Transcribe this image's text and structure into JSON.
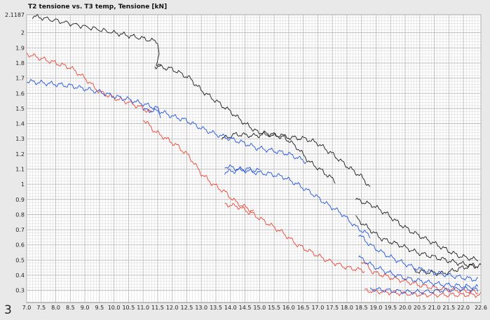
{
  "figure_number": "3",
  "colors": {
    "series_black": "#1a1a1a",
    "series_red": "#ee4433",
    "series_blue": "#2255dd",
    "grid_minor": "#d6d6d6",
    "grid_major": "#b5b5b5",
    "plot_bg": "#ffffff"
  },
  "chart_data": {
    "type": "line",
    "title": "T2 tensione vs. T3 temp, Tensione [kN]",
    "xlabel": "",
    "ylabel": "",
    "xlim": [
      7.0,
      22.6
    ],
    "ylim": [
      0.22,
      2.1187
    ],
    "grid": true,
    "x_ticks": [
      "7.0",
      "7.5",
      "8.0",
      "8.5",
      "9.0",
      "9.5",
      "10.0",
      "10.5",
      "11.0",
      "11.5",
      "12.0",
      "12.5",
      "13.0",
      "13.5",
      "14.0",
      "14.5",
      "15.0",
      "15.5",
      "16.0",
      "16.5",
      "17.0",
      "17.5",
      "18.0",
      "18.5",
      "19.0",
      "19.5",
      "20.0",
      "20.5",
      "21.0",
      "21.5",
      "22.0",
      "22.6"
    ],
    "y_ticks": [
      "0.3",
      "0.4",
      "0.5",
      "0.6",
      "0.7",
      "0.8",
      "0.9",
      "1",
      "1.1",
      "1.2",
      "1.3",
      "1.4",
      "1.5",
      "1.6",
      "1.7",
      "1.8",
      "1.9",
      "2",
      "2.1187"
    ],
    "series": [
      {
        "color": "#1a1a1a",
        "segments": [
          [
            [
              7.2,
              2.11
            ],
            [
              8.0,
              2.08
            ],
            [
              9.0,
              2.04
            ],
            [
              10.0,
              2.0
            ],
            [
              10.8,
              1.97
            ],
            [
              11.5,
              1.94
            ],
            [
              11.55,
              1.86
            ],
            [
              11.45,
              1.8
            ],
            [
              11.6,
              1.79
            ]
          ],
          [
            [
              11.4,
              1.78
            ],
            [
              12.0,
              1.76
            ],
            [
              12.6,
              1.7
            ],
            [
              13.0,
              1.62
            ],
            [
              13.5,
              1.55
            ],
            [
              14.0,
              1.48
            ],
            [
              14.5,
              1.4
            ],
            [
              14.9,
              1.35
            ]
          ],
          [
            [
              14.9,
              1.35
            ],
            [
              15.5,
              1.32
            ],
            [
              16.0,
              1.31
            ],
            [
              16.6,
              1.3
            ],
            [
              17.0,
              1.27
            ],
            [
              17.5,
              1.2
            ],
            [
              18.0,
              1.12
            ],
            [
              18.5,
              1.05
            ],
            [
              18.8,
              0.98
            ]
          ],
          [
            [
              13.7,
              1.3
            ],
            [
              14.2,
              1.33
            ],
            [
              14.8,
              1.32
            ],
            [
              15.3,
              1.33
            ],
            [
              15.8,
              1.32
            ],
            [
              16.3,
              1.24
            ],
            [
              16.7,
              1.15
            ],
            [
              17.2,
              1.08
            ],
            [
              17.6,
              1.02
            ]
          ],
          [
            [
              18.3,
              0.9
            ],
            [
              18.9,
              0.86
            ],
            [
              19.4,
              0.8
            ],
            [
              19.8,
              0.74
            ],
            [
              20.2,
              0.69
            ],
            [
              20.8,
              0.63
            ],
            [
              21.3,
              0.58
            ],
            [
              21.8,
              0.53
            ],
            [
              22.5,
              0.5
            ]
          ],
          [
            [
              18.3,
              0.78
            ],
            [
              18.8,
              0.7
            ],
            [
              19.2,
              0.64
            ],
            [
              19.8,
              0.6
            ],
            [
              20.4,
              0.55
            ],
            [
              21.0,
              0.52
            ],
            [
              21.6,
              0.49
            ],
            [
              22.1,
              0.47
            ],
            [
              22.5,
              0.46
            ]
          ],
          [
            [
              20.3,
              0.43
            ],
            [
              20.8,
              0.42
            ],
            [
              21.3,
              0.41
            ],
            [
              21.8,
              0.44
            ],
            [
              22.2,
              0.46
            ],
            [
              22.6,
              0.46
            ]
          ]
        ]
      },
      {
        "color": "#ee4433",
        "segments": [
          [
            [
              7.0,
              1.86
            ],
            [
              7.5,
              1.83
            ],
            [
              8.0,
              1.8
            ],
            [
              8.5,
              1.77
            ],
            [
              9.0,
              1.7
            ],
            [
              9.5,
              1.61
            ],
            [
              10.0,
              1.57
            ],
            [
              10.5,
              1.54
            ],
            [
              11.0,
              1.5
            ],
            [
              11.3,
              1.47
            ]
          ],
          [
            [
              11.0,
              1.43
            ],
            [
              11.4,
              1.35
            ],
            [
              11.8,
              1.3
            ],
            [
              12.2,
              1.25
            ],
            [
              12.6,
              1.18
            ],
            [
              13.0,
              1.07
            ],
            [
              13.4,
              1.0
            ],
            [
              13.8,
              0.95
            ],
            [
              14.2,
              0.88
            ],
            [
              14.8,
              0.82
            ]
          ],
          [
            [
              13.8,
              0.87
            ],
            [
              14.3,
              0.85
            ],
            [
              14.8,
              0.8
            ],
            [
              15.3,
              0.74
            ],
            [
              15.8,
              0.68
            ],
            [
              16.3,
              0.6
            ],
            [
              16.8,
              0.55
            ],
            [
              17.3,
              0.5
            ],
            [
              18.0,
              0.45
            ],
            [
              18.6,
              0.43
            ]
          ],
          [
            [
              18.5,
              0.5
            ],
            [
              18.9,
              0.42
            ],
            [
              19.4,
              0.39
            ],
            [
              20.0,
              0.36
            ],
            [
              20.6,
              0.33
            ],
            [
              21.2,
              0.31
            ],
            [
              21.8,
              0.3
            ],
            [
              22.5,
              0.29
            ]
          ],
          [
            [
              18.6,
              0.3
            ],
            [
              19.2,
              0.29
            ],
            [
              19.9,
              0.28
            ],
            [
              20.7,
              0.27
            ],
            [
              21.4,
              0.27
            ],
            [
              22.1,
              0.27
            ],
            [
              22.6,
              0.27
            ]
          ]
        ]
      },
      {
        "color": "#2255dd",
        "segments": [
          [
            [
              7.0,
              1.68
            ],
            [
              7.5,
              1.67
            ],
            [
              8.0,
              1.66
            ],
            [
              8.5,
              1.65
            ],
            [
              9.0,
              1.63
            ],
            [
              9.5,
              1.61
            ],
            [
              10.0,
              1.58
            ],
            [
              10.5,
              1.56
            ],
            [
              11.0,
              1.53
            ],
            [
              11.5,
              1.5
            ],
            [
              11.6,
              1.45
            ]
          ],
          [
            [
              11.0,
              1.49
            ],
            [
              11.6,
              1.48
            ],
            [
              12.0,
              1.45
            ],
            [
              12.5,
              1.42
            ],
            [
              13.0,
              1.37
            ],
            [
              13.5,
              1.33
            ],
            [
              14.0,
              1.3
            ],
            [
              14.5,
              1.27
            ],
            [
              14.9,
              1.24
            ],
            [
              15.5,
              1.22
            ],
            [
              16.0,
              1.2
            ],
            [
              16.6,
              1.15
            ]
          ],
          [
            [
              13.8,
              1.12
            ],
            [
              14.3,
              1.1
            ],
            [
              14.8,
              1.08
            ],
            [
              15.3,
              1.07
            ],
            [
              15.8,
              1.05
            ],
            [
              16.3,
              1.0
            ],
            [
              16.8,
              0.94
            ],
            [
              17.3,
              0.87
            ],
            [
              17.8,
              0.81
            ],
            [
              18.3,
              0.72
            ],
            [
              18.8,
              0.66
            ]
          ],
          [
            [
              13.8,
              1.08
            ],
            [
              14.2,
              1.09
            ],
            [
              14.6,
              1.1
            ],
            [
              15.0,
              1.09
            ]
          ],
          [
            [
              18.4,
              0.67
            ],
            [
              18.8,
              0.6
            ],
            [
              19.2,
              0.55
            ],
            [
              19.7,
              0.5
            ],
            [
              20.3,
              0.45
            ],
            [
              20.9,
              0.42
            ],
            [
              21.5,
              0.4
            ],
            [
              22.1,
              0.38
            ],
            [
              22.5,
              0.37
            ]
          ],
          [
            [
              18.4,
              0.52
            ],
            [
              18.9,
              0.46
            ],
            [
              19.4,
              0.42
            ],
            [
              20.0,
              0.38
            ],
            [
              20.6,
              0.36
            ],
            [
              21.2,
              0.34
            ],
            [
              21.8,
              0.33
            ],
            [
              22.5,
              0.32
            ]
          ],
          [
            [
              18.8,
              0.31
            ],
            [
              19.4,
              0.3
            ],
            [
              20.0,
              0.29
            ],
            [
              20.6,
              0.29
            ],
            [
              21.3,
              0.3
            ],
            [
              22.0,
              0.31
            ],
            [
              22.5,
              0.3
            ]
          ]
        ]
      }
    ]
  }
}
